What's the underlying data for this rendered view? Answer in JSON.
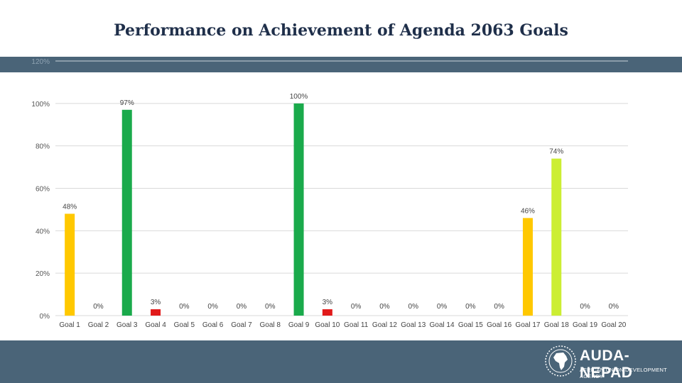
{
  "page": {
    "title": "Performance on Achievement of Agenda 2063 Goals"
  },
  "colors": {
    "band": "#4a6478",
    "title": "#1f2f4a",
    "green": "#1aaa4b",
    "yellow": "#ffc800",
    "lime": "#ccee33",
    "red": "#e11a1a"
  },
  "logo": {
    "name": "AUDA-NEPAD",
    "tagline": "AFRICAN UNION DEVELOPMENT AGENCY",
    "icon": "africa-emblem-icon"
  },
  "chart_data": {
    "type": "bar",
    "title": "Performance on Achievement of Agenda 2063 Goals",
    "xlabel": "",
    "ylabel": "",
    "ylim": [
      0,
      120
    ],
    "yticks": [
      "0%",
      "20%",
      "40%",
      "60%",
      "80%",
      "100%",
      "120%"
    ],
    "grid": true,
    "categories": [
      "Goal 1",
      "Goal 2",
      "Goal 3",
      "Goal 4",
      "Goal 5",
      "Goal 6",
      "Goal 7",
      "Goal 8",
      "Goal 9",
      "Goal 10",
      "Goal 11",
      "Goal 12",
      "Goal 13",
      "Goal 14",
      "Goal 15",
      "Goal 16",
      "Goal 17",
      "Goal 18",
      "Goal 19",
      "Goal 20"
    ],
    "values": [
      48,
      0,
      97,
      3,
      0,
      0,
      0,
      0,
      100,
      3,
      0,
      0,
      0,
      0,
      0,
      0,
      46,
      74,
      0,
      0
    ],
    "labels": [
      "48%",
      "0%",
      "97%",
      "3%",
      "0%",
      "0%",
      "0%",
      "0%",
      "100%",
      "3%",
      "0%",
      "0%",
      "0%",
      "0%",
      "0%",
      "0%",
      "46%",
      "74%",
      "0%",
      "0%"
    ],
    "bar_colors": [
      "#ffc800",
      "#ffc800",
      "#1aaa4b",
      "#e11a1a",
      "#e11a1a",
      "#e11a1a",
      "#e11a1a",
      "#e11a1a",
      "#1aaa4b",
      "#e11a1a",
      "#e11a1a",
      "#e11a1a",
      "#e11a1a",
      "#e11a1a",
      "#e11a1a",
      "#e11a1a",
      "#ffc800",
      "#ccee33",
      "#e11a1a",
      "#e11a1a"
    ]
  }
}
